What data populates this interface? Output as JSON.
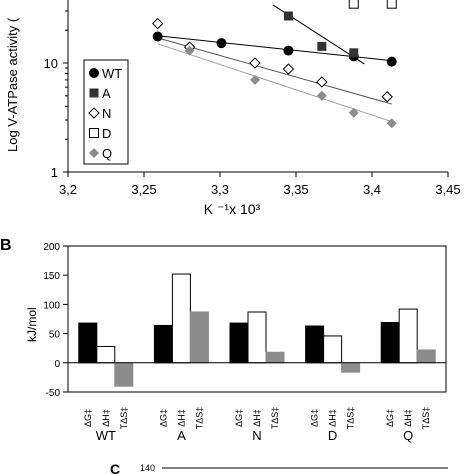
{
  "colors": {
    "black": "#000000",
    "white": "#ffffff",
    "gray": "#8c8c8c",
    "dark_gray": "#555555",
    "light_line": "#a0a0a0"
  },
  "chart_data": [
    {
      "type": "scatter",
      "panel_label": "",
      "title": "",
      "xlabel": "K ⁻¹x 10³",
      "ylabel": "Log V-ATPase activity (",
      "yscale": "log",
      "xlim": [
        3.2,
        3.45
      ],
      "x_tick_labels": [
        "3,2",
        "3,25",
        "3,3",
        "3,35",
        "3,4",
        "3,45"
      ],
      "x_ticks": [
        3.2,
        3.25,
        3.3,
        3.35,
        3.4,
        3.45
      ],
      "y_tick_labels": [
        "1",
        "10"
      ],
      "y_ticks": [
        1,
        10
      ],
      "legend_position": "left",
      "series": [
        {
          "name": "WT",
          "marker": "filled-circle",
          "fit_color": "#000000",
          "x": [
            3.259,
            3.301,
            3.345,
            3.388,
            3.413
          ],
          "y": [
            17.5,
            15.2,
            13.0,
            11.5,
            10.3
          ],
          "fit": [
            [
              3.259,
              17.8
            ],
            [
              3.413,
              10.5
            ]
          ]
        },
        {
          "name": "A",
          "marker": "filled-square",
          "fit_color": "#000000",
          "x": [
            3.345,
            3.367,
            3.388
          ],
          "y": [
            27.0,
            14.2,
            12.4
          ],
          "fit": [
            [
              3.335,
              34.0
            ],
            [
              3.395,
              9.8
            ]
          ]
        },
        {
          "name": "N",
          "marker": "open-diamond",
          "fit_color": "#555555",
          "x": [
            3.259,
            3.28,
            3.323,
            3.345,
            3.367,
            3.41
          ],
          "y": [
            23.0,
            14.0,
            10.0,
            8.8,
            6.7,
            4.9
          ],
          "fit": [
            [
              3.259,
              17.0
            ],
            [
              3.413,
              4.2
            ]
          ]
        },
        {
          "name": "D",
          "marker": "open-square",
          "fit_color": "#555555",
          "x": [
            3.388,
            3.413
          ],
          "y": [
            35.0,
            35.0
          ],
          "fit": []
        },
        {
          "name": "Q",
          "marker": "filled-diamond-gray",
          "fit_color": "#a0a0a0",
          "x": [
            3.28,
            3.323,
            3.367,
            3.388,
            3.413
          ],
          "y": [
            13.0,
            7.0,
            5.0,
            3.5,
            2.8
          ],
          "fit": [
            [
              3.259,
              15.0
            ],
            [
              3.413,
              2.9
            ]
          ]
        }
      ]
    },
    {
      "type": "bar",
      "panel_label": "B",
      "title": "",
      "xlabel": "",
      "ylabel": "kJ/mol",
      "ylim": [
        -50,
        200
      ],
      "y_tick_labels": [
        "200",
        "150",
        "100",
        "50",
        "0",
        "-50"
      ],
      "y_ticks": [
        200,
        150,
        100,
        50,
        0,
        -50
      ],
      "categories": [
        "WT",
        "A",
        "N",
        "D",
        "Q"
      ],
      "sublabels": [
        "ΔG‡",
        "ΔH‡",
        "TΔS‡"
      ],
      "series": [
        {
          "name": "ΔG‡",
          "fill": "#000000",
          "values": [
            68,
            64,
            68,
            63,
            69
          ]
        },
        {
          "name": "ΔH‡",
          "fill": "#ffffff",
          "values": [
            28,
            152,
            87,
            46,
            92
          ]
        },
        {
          "name": "TΔS‡",
          "fill": "#8c8c8c",
          "values": [
            -40,
            87,
            18,
            -16,
            22
          ]
        }
      ]
    },
    {
      "type": "bar",
      "panel_label": "C",
      "y_tick_labels": [
        "140"
      ]
    }
  ]
}
